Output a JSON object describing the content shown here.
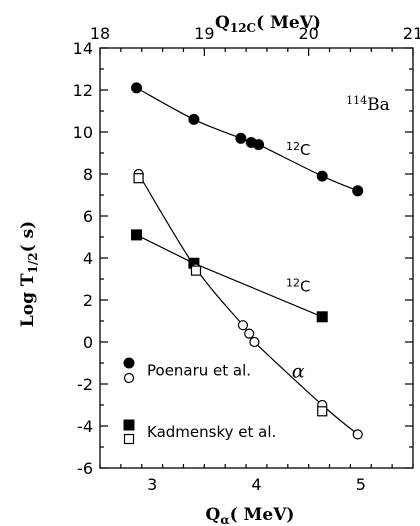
{
  "chart_data": {
    "type": "scatter",
    "title": "",
    "panel_label": "114Ba",
    "panel_label_mass": "114",
    "panel_label_element": "Ba",
    "xlabel_bottom": "Qα(MeV)",
    "xlabel_bottom_base": "Q",
    "xlabel_bottom_sub": "α",
    "xlabel_bottom_unit": "( MeV)",
    "xlabel_top": "Q12C(MeV)",
    "xlabel_top_base": "Q",
    "xlabel_top_sub": "12C",
    "xlabel_top_unit": "( MeV)",
    "ylabel": "Log T1/2 (s)",
    "ylabel_base": "Log T",
    "ylabel_sub": "1/2",
    "ylabel_unit": "( s)",
    "xlim_bottom": [
      2.5,
      5.5
    ],
    "xlim_top": [
      18,
      21
    ],
    "ylim": [
      -6,
      14
    ],
    "x_ticks_bottom": [
      3,
      4,
      5
    ],
    "x_ticks_top": [
      18,
      19,
      20,
      21
    ],
    "y_ticks": [
      -6,
      -4,
      -2,
      0,
      2,
      4,
      6,
      8,
      10,
      12,
      14
    ],
    "grid": false,
    "legend": [
      {
        "label": "Poenaru et al.",
        "markers": [
          "filled-circle",
          "open-circle"
        ]
      },
      {
        "label": "Kadmensky et al.",
        "markers": [
          "filled-square",
          "open-square"
        ]
      }
    ],
    "curve_labels": [
      {
        "text": "12C",
        "mass": "12",
        "element": "C",
        "series": "Poenaru 12C",
        "x": 19.9,
        "y": 8.9
      },
      {
        "text": "12C",
        "mass": "12",
        "element": "C",
        "series": "Kadmensky 12C",
        "x": 19.9,
        "y": 2.4
      },
      {
        "text": "α",
        "series": "alpha",
        "x": 4.4,
        "y": -1.7
      }
    ],
    "series": [
      {
        "name": "Poenaru et al. (12C)",
        "axis": "top",
        "marker": "filled-circle",
        "connected": true,
        "x": [
          18.35,
          18.9,
          19.35,
          19.45,
          19.52,
          20.13,
          20.47
        ],
        "y": [
          12.1,
          10.6,
          9.7,
          9.5,
          9.4,
          7.9,
          7.2
        ]
      },
      {
        "name": "Kadmensky et al. (12C)",
        "axis": "top",
        "marker": "filled-square",
        "connected": true,
        "x": [
          18.35,
          18.9,
          20.13
        ],
        "y": [
          5.1,
          3.75,
          1.2
        ]
      },
      {
        "name": "Poenaru et al. (α)",
        "axis": "bottom",
        "marker": "open-circle",
        "connected": true,
        "x": [
          2.87,
          3.42,
          3.87,
          3.93,
          3.98,
          4.63,
          4.97
        ],
        "y": [
          8.0,
          3.5,
          0.8,
          0.4,
          0.0,
          -3.0,
          -4.4
        ]
      },
      {
        "name": "Kadmensky et al. (α)",
        "axis": "bottom",
        "marker": "open-square",
        "connected": false,
        "x": [
          2.87,
          3.42,
          4.63
        ],
        "y": [
          7.8,
          3.4,
          -3.3
        ]
      }
    ]
  }
}
